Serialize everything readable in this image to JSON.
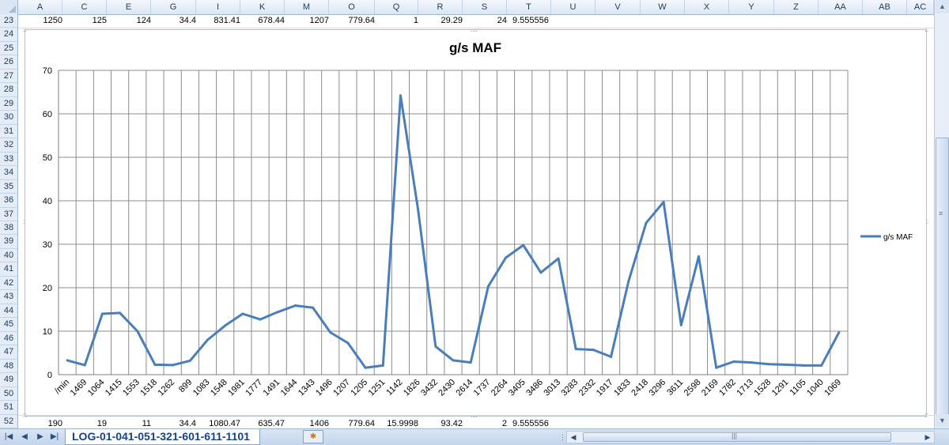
{
  "columns": [
    "A",
    "C",
    "E",
    "G",
    "I",
    "K",
    "M",
    "O",
    "Q",
    "R",
    "S",
    "T",
    "U",
    "V",
    "W",
    "X",
    "Y",
    "Z",
    "AA",
    "AB",
    "AC"
  ],
  "rows": [
    "23",
    "24",
    "25",
    "26",
    "27",
    "28",
    "29",
    "30",
    "31",
    "32",
    "33",
    "34",
    "35",
    "36",
    "37",
    "38",
    "39",
    "40",
    "41",
    "42",
    "43",
    "44",
    "45",
    "46",
    "47",
    "48",
    "49",
    "50",
    "51",
    "52"
  ],
  "row23": [
    "1250",
    "125",
    "124",
    "34.4",
    "831.41",
    "678.44",
    "1207",
    "779.64",
    "1",
    "29.29",
    "24",
    "9.555556"
  ],
  "row52": [
    "190",
    "19",
    "11",
    "34.4",
    "1080.47",
    "635.47",
    "1406",
    "779.64",
    "15.9998",
    "93.42",
    "2",
    "9.555556"
  ],
  "sheet_tab": "LOG-01-041-051-321-601-611-1101",
  "chart_data": {
    "type": "line",
    "title": "g/s  MAF",
    "legend_position": "right",
    "grid": true,
    "ylim": [
      0,
      70
    ],
    "yticks": [
      0,
      10,
      20,
      30,
      40,
      50,
      60,
      70
    ],
    "categories": [
      "/min",
      "1469",
      "1064",
      "1415",
      "1553",
      "1518",
      "1262",
      "899",
      "1083",
      "1548",
      "1981",
      "1777",
      "1491",
      "1644",
      "1343",
      "1496",
      "1207",
      "1205",
      "1251",
      "1142",
      "1826",
      "3432",
      "2430",
      "2614",
      "1737",
      "2264",
      "3405",
      "3486",
      "3013",
      "3283",
      "2332",
      "1917",
      "1833",
      "2418",
      "3296",
      "3611",
      "2598",
      "2169",
      "1782",
      "1713",
      "1528",
      "1291",
      "1105",
      "1040",
      "1069"
    ],
    "series": [
      {
        "name": "g/s  MAF",
        "color": "#4a7ebb",
        "values": [
          3.3,
          2.2,
          14.0,
          14.2,
          10.0,
          2.3,
          2.2,
          3.2,
          8.0,
          11.3,
          14.0,
          12.7,
          14.4,
          15.9,
          15.4,
          9.7,
          7.3,
          1.6,
          2.1,
          64.2,
          38.0,
          6.5,
          3.3,
          2.8,
          20.3,
          26.9,
          29.8,
          23.5,
          26.7,
          5.9,
          5.7,
          4.1,
          21.5,
          34.9,
          39.7,
          11.4,
          27.2,
          1.6,
          3.0,
          2.8,
          2.4,
          2.3,
          2.1,
          2.1,
          9.7
        ]
      }
    ]
  }
}
